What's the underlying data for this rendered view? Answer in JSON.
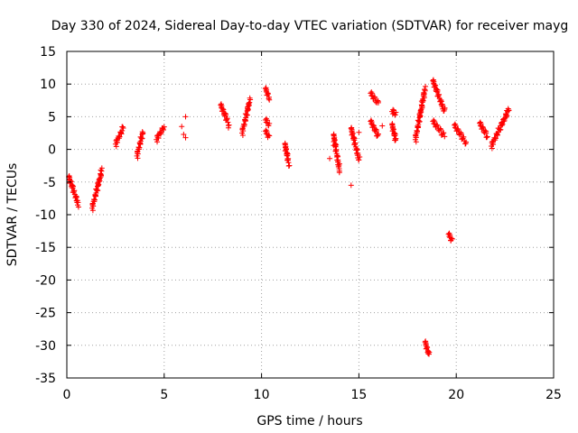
{
  "chart_data": {
    "type": "scatter",
    "title": "Day 330 of 2024, Sidereal Day-to-day VTEC variation (SDTVAR) for receiver mayg",
    "xlabel": "GPS time / hours",
    "ylabel": "SDTVAR / TECUs",
    "xlim": [
      0,
      25
    ],
    "ylim": [
      -35,
      15
    ],
    "xticks": [
      0,
      5,
      10,
      15,
      20,
      25
    ],
    "yticks": [
      15,
      10,
      5,
      0,
      -5,
      -10,
      -15,
      -20,
      -25,
      -30,
      -35
    ],
    "grid": true,
    "marker": "+",
    "color": "#ff0000",
    "series": [
      {
        "name": "SDTVAR",
        "segments": [
          {
            "x": [
              0.1,
              0.6
            ],
            "y": [
              -4.2,
              -8.5
            ]
          },
          {
            "x": [
              1.3,
              1.8
            ],
            "y": [
              -9.0,
              -3.2
            ]
          },
          {
            "x": [
              2.5,
              2.9
            ],
            "y": [
              0.8,
              3.3
            ]
          },
          {
            "x": [
              3.6,
              3.9
            ],
            "y": [
              -1.0,
              2.6
            ]
          },
          {
            "x": [
              4.6,
              5.0
            ],
            "y": [
              1.5,
              3.5
            ]
          },
          {
            "x": [
              7.9,
              8.3
            ],
            "y": [
              6.8,
              4.0
            ]
          },
          {
            "x": [
              9.0,
              9.4
            ],
            "y": [
              2.5,
              7.5
            ]
          },
          {
            "x": [
              10.2,
              10.4
            ],
            "y": [
              9.3,
              7.8
            ]
          },
          {
            "x": [
              10.2,
              10.4
            ],
            "y": [
              4.5,
              3.8
            ]
          },
          {
            "x": [
              10.2,
              10.4
            ],
            "y": [
              2.8,
              1.8
            ]
          },
          {
            "x": [
              11.2,
              11.4
            ],
            "y": [
              0.8,
              -2.2
            ]
          },
          {
            "x": [
              13.7,
              14.0
            ],
            "y": [
              2.2,
              -3.2
            ]
          },
          {
            "x": [
              14.6,
              15.0
            ],
            "y": [
              3.2,
              -1.5
            ]
          },
          {
            "x": [
              15.6,
              16.0
            ],
            "y": [
              8.6,
              7.0
            ]
          },
          {
            "x": [
              15.6,
              16.0
            ],
            "y": [
              4.3,
              2.0
            ]
          },
          {
            "x": [
              16.7,
              16.9
            ],
            "y": [
              5.8,
              5.5
            ]
          },
          {
            "x": [
              16.7,
              16.9
            ],
            "y": [
              3.8,
              1.3
            ]
          },
          {
            "x": [
              17.9,
              18.4
            ],
            "y": [
              1.5,
              9.3
            ]
          },
          {
            "x": [
              18.8,
              19.4
            ],
            "y": [
              10.5,
              5.8
            ]
          },
          {
            "x": [
              18.8,
              19.4
            ],
            "y": [
              4.3,
              2.0
            ]
          },
          {
            "x": [
              19.9,
              20.5
            ],
            "y": [
              3.7,
              1.0
            ]
          },
          {
            "x": [
              21.2,
              21.6
            ],
            "y": [
              4.0,
              2.0
            ]
          },
          {
            "x": [
              21.8,
              22.7
            ],
            "y": [
              0.5,
              6.1
            ]
          },
          {
            "x": [
              19.6,
              19.8
            ],
            "y": [
              -13.0,
              -14.0
            ]
          },
          {
            "x": [
              18.4,
              18.6
            ],
            "y": [
              -29.5,
              -31.5
            ]
          }
        ],
        "points": [
          [
            5.9,
            3.5
          ],
          [
            6.0,
            2.3
          ],
          [
            6.1,
            5.0
          ],
          [
            6.1,
            1.8
          ],
          [
            8.3,
            3.3
          ],
          [
            13.5,
            -1.4
          ],
          [
            13.7,
            0.6
          ],
          [
            14.6,
            -5.5
          ],
          [
            15.0,
            2.6
          ],
          [
            16.2,
            3.6
          ]
        ]
      }
    ]
  }
}
